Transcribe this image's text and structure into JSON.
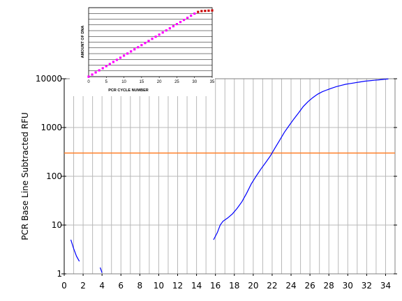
{
  "chart_data": [
    {
      "type": "line",
      "title": "",
      "xlabel": "",
      "ylabel": "PCR Base Line Subtracted RFU",
      "yscale": "log",
      "xlim": [
        0,
        35
      ],
      "ylim": [
        1,
        10000
      ],
      "x_ticks": [
        0,
        2,
        4,
        6,
        8,
        10,
        12,
        14,
        16,
        18,
        20,
        22,
        24,
        26,
        28,
        30,
        32,
        34
      ],
      "x_tick_labels": [
        "0",
        "2",
        "4",
        "6",
        "8",
        "10",
        "12",
        "14",
        "16",
        "18",
        "20",
        "22",
        "24",
        "26",
        "28",
        "30",
        "32",
        "34"
      ],
      "y_ticks": [
        1,
        10,
        100,
        1000,
        10000
      ],
      "y_tick_labels": [
        "1",
        "10",
        "100",
        "1000",
        "10000"
      ],
      "grid": true,
      "threshold": {
        "value": 300,
        "color": "#ff7f27"
      },
      "series": [
        {
          "color": "#0000ff",
          "x": [
            0.7,
            1.0,
            1.3,
            1.6
          ],
          "y": [
            5,
            3.3,
            2.3,
            1.8
          ]
        },
        {
          "color": "#0000ff",
          "x": [
            3.8,
            3.9,
            4.0
          ],
          "y": [
            1.35,
            1.2,
            1.05
          ]
        },
        {
          "color": "#0000ff",
          "x": [
            15.8,
            16.2,
            16.5,
            16.8,
            17.3,
            17.8,
            18.3,
            18.8,
            19.3,
            19.8,
            20.3,
            20.8,
            21.3,
            21.8,
            22.3,
            22.8,
            23.3,
            23.8,
            24.3,
            24.8,
            25.3,
            25.8,
            26.3,
            26.8,
            27.3,
            27.8,
            28.3,
            28.8,
            29.3,
            29.8,
            30.3,
            30.8,
            31.3,
            31.8,
            32.3,
            32.8,
            33.3,
            33.8,
            34.3
          ],
          "y": [
            5,
            7,
            10,
            12,
            14,
            17,
            22,
            30,
            45,
            70,
            100,
            140,
            190,
            260,
            380,
            550,
            800,
            1100,
            1500,
            2000,
            2700,
            3400,
            4100,
            4800,
            5400,
            5900,
            6400,
            6900,
            7300,
            7700,
            8000,
            8300,
            8600,
            8900,
            9100,
            9300,
            9500,
            9700,
            9900
          ]
        }
      ]
    },
    {
      "type": "scatter",
      "title": "",
      "xlabel": "PCR CYCLE NUMBER",
      "ylabel": "AMOUNT OF DNA",
      "xlim": [
        0,
        35
      ],
      "x_ticks": [
        0,
        5,
        10,
        15,
        20,
        25,
        30,
        35
      ],
      "x_tick_labels": [
        "0",
        "5",
        "10",
        "15",
        "20",
        "25",
        "30",
        "35"
      ],
      "grid": true,
      "series": [
        {
          "color": "#ff00ff",
          "x": [
            0,
            1,
            2,
            3,
            4,
            5,
            6,
            7,
            8,
            9,
            10,
            11,
            12,
            13,
            14,
            15,
            16,
            17,
            18,
            19,
            20,
            21,
            22,
            23,
            24,
            25,
            26,
            27,
            28,
            29,
            30
          ],
          "y": [
            0,
            1,
            2,
            3,
            4,
            5,
            6,
            7,
            8,
            9,
            10,
            11,
            12,
            13,
            14,
            15,
            16,
            17,
            18,
            19,
            20,
            21,
            22,
            23,
            24,
            25,
            26,
            27,
            28,
            29,
            30
          ]
        },
        {
          "color": "#cc0000",
          "x": [
            31,
            32,
            33,
            34,
            35
          ],
          "y": [
            30.8,
            31.2,
            31.3,
            31.4,
            31.5
          ]
        }
      ]
    }
  ]
}
